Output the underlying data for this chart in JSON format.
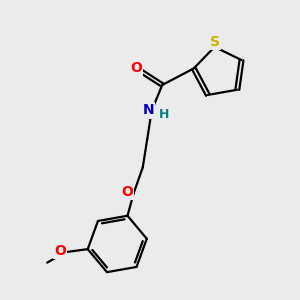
{
  "background_color": "#ebebeb",
  "atom_colors": {
    "S": "#c8b400",
    "O": "#ff0000",
    "N": "#0000cc",
    "H": "#008080",
    "C": "#000000"
  },
  "bond_color": "#000000",
  "bond_width": 1.6,
  "figsize": [
    3.0,
    3.0
  ],
  "dpi": 100,
  "xlim": [
    0,
    10
  ],
  "ylim": [
    0,
    10
  ]
}
